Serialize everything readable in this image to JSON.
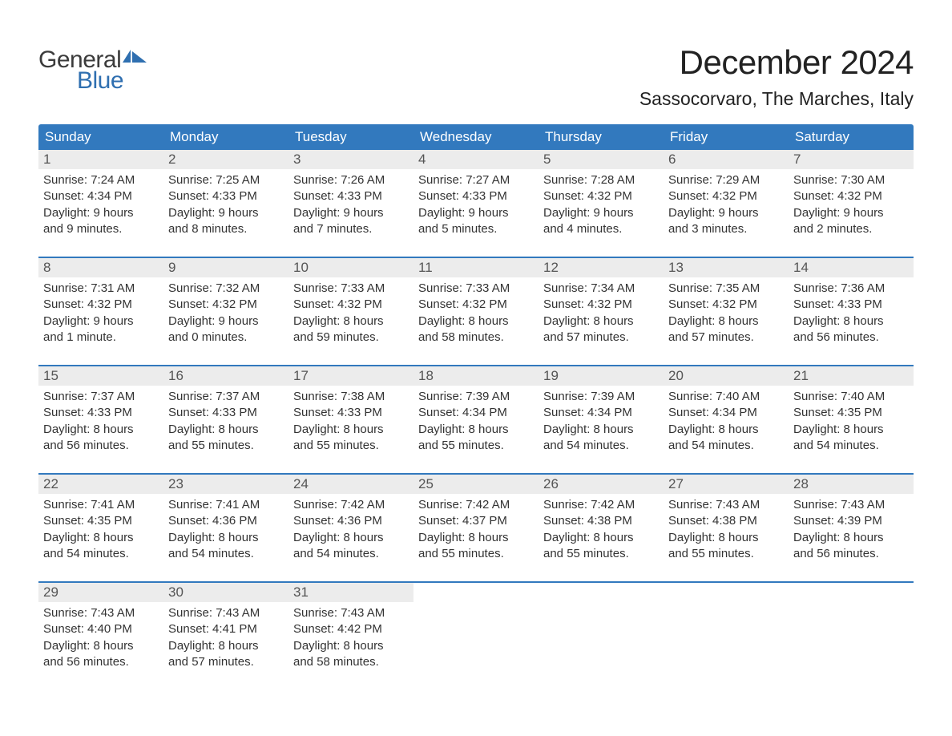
{
  "logo": {
    "text_general": "General",
    "text_blue": "Blue",
    "flag_color": "#2f6fb0"
  },
  "title": "December 2024",
  "location": "Sassocorvaro, The Marches, Italy",
  "colors": {
    "header_bg": "#3279be",
    "header_text": "#ffffff",
    "daynum_bg": "#ececec",
    "daynum_text": "#555555",
    "body_text": "#333333",
    "week_border": "#3279be",
    "page_bg": "#ffffff"
  },
  "fonts": {
    "title_size_pt": 32,
    "location_size_pt": 17,
    "dayheader_size_pt": 13,
    "daynum_size_pt": 13,
    "body_size_pt": 11
  },
  "layout": {
    "columns": 7,
    "rows": 5
  },
  "day_headers": [
    "Sunday",
    "Monday",
    "Tuesday",
    "Wednesday",
    "Thursday",
    "Friday",
    "Saturday"
  ],
  "weeks": [
    [
      {
        "n": "1",
        "sunrise": "Sunrise: 7:24 AM",
        "sunset": "Sunset: 4:34 PM",
        "daylight1": "Daylight: 9 hours",
        "daylight2": "and 9 minutes."
      },
      {
        "n": "2",
        "sunrise": "Sunrise: 7:25 AM",
        "sunset": "Sunset: 4:33 PM",
        "daylight1": "Daylight: 9 hours",
        "daylight2": "and 8 minutes."
      },
      {
        "n": "3",
        "sunrise": "Sunrise: 7:26 AM",
        "sunset": "Sunset: 4:33 PM",
        "daylight1": "Daylight: 9 hours",
        "daylight2": "and 7 minutes."
      },
      {
        "n": "4",
        "sunrise": "Sunrise: 7:27 AM",
        "sunset": "Sunset: 4:33 PM",
        "daylight1": "Daylight: 9 hours",
        "daylight2": "and 5 minutes."
      },
      {
        "n": "5",
        "sunrise": "Sunrise: 7:28 AM",
        "sunset": "Sunset: 4:32 PM",
        "daylight1": "Daylight: 9 hours",
        "daylight2": "and 4 minutes."
      },
      {
        "n": "6",
        "sunrise": "Sunrise: 7:29 AM",
        "sunset": "Sunset: 4:32 PM",
        "daylight1": "Daylight: 9 hours",
        "daylight2": "and 3 minutes."
      },
      {
        "n": "7",
        "sunrise": "Sunrise: 7:30 AM",
        "sunset": "Sunset: 4:32 PM",
        "daylight1": "Daylight: 9 hours",
        "daylight2": "and 2 minutes."
      }
    ],
    [
      {
        "n": "8",
        "sunrise": "Sunrise: 7:31 AM",
        "sunset": "Sunset: 4:32 PM",
        "daylight1": "Daylight: 9 hours",
        "daylight2": "and 1 minute."
      },
      {
        "n": "9",
        "sunrise": "Sunrise: 7:32 AM",
        "sunset": "Sunset: 4:32 PM",
        "daylight1": "Daylight: 9 hours",
        "daylight2": "and 0 minutes."
      },
      {
        "n": "10",
        "sunrise": "Sunrise: 7:33 AM",
        "sunset": "Sunset: 4:32 PM",
        "daylight1": "Daylight: 8 hours",
        "daylight2": "and 59 minutes."
      },
      {
        "n": "11",
        "sunrise": "Sunrise: 7:33 AM",
        "sunset": "Sunset: 4:32 PM",
        "daylight1": "Daylight: 8 hours",
        "daylight2": "and 58 minutes."
      },
      {
        "n": "12",
        "sunrise": "Sunrise: 7:34 AM",
        "sunset": "Sunset: 4:32 PM",
        "daylight1": "Daylight: 8 hours",
        "daylight2": "and 57 minutes."
      },
      {
        "n": "13",
        "sunrise": "Sunrise: 7:35 AM",
        "sunset": "Sunset: 4:32 PM",
        "daylight1": "Daylight: 8 hours",
        "daylight2": "and 57 minutes."
      },
      {
        "n": "14",
        "sunrise": "Sunrise: 7:36 AM",
        "sunset": "Sunset: 4:33 PM",
        "daylight1": "Daylight: 8 hours",
        "daylight2": "and 56 minutes."
      }
    ],
    [
      {
        "n": "15",
        "sunrise": "Sunrise: 7:37 AM",
        "sunset": "Sunset: 4:33 PM",
        "daylight1": "Daylight: 8 hours",
        "daylight2": "and 56 minutes."
      },
      {
        "n": "16",
        "sunrise": "Sunrise: 7:37 AM",
        "sunset": "Sunset: 4:33 PM",
        "daylight1": "Daylight: 8 hours",
        "daylight2": "and 55 minutes."
      },
      {
        "n": "17",
        "sunrise": "Sunrise: 7:38 AM",
        "sunset": "Sunset: 4:33 PM",
        "daylight1": "Daylight: 8 hours",
        "daylight2": "and 55 minutes."
      },
      {
        "n": "18",
        "sunrise": "Sunrise: 7:39 AM",
        "sunset": "Sunset: 4:34 PM",
        "daylight1": "Daylight: 8 hours",
        "daylight2": "and 55 minutes."
      },
      {
        "n": "19",
        "sunrise": "Sunrise: 7:39 AM",
        "sunset": "Sunset: 4:34 PM",
        "daylight1": "Daylight: 8 hours",
        "daylight2": "and 54 minutes."
      },
      {
        "n": "20",
        "sunrise": "Sunrise: 7:40 AM",
        "sunset": "Sunset: 4:34 PM",
        "daylight1": "Daylight: 8 hours",
        "daylight2": "and 54 minutes."
      },
      {
        "n": "21",
        "sunrise": "Sunrise: 7:40 AM",
        "sunset": "Sunset: 4:35 PM",
        "daylight1": "Daylight: 8 hours",
        "daylight2": "and 54 minutes."
      }
    ],
    [
      {
        "n": "22",
        "sunrise": "Sunrise: 7:41 AM",
        "sunset": "Sunset: 4:35 PM",
        "daylight1": "Daylight: 8 hours",
        "daylight2": "and 54 minutes."
      },
      {
        "n": "23",
        "sunrise": "Sunrise: 7:41 AM",
        "sunset": "Sunset: 4:36 PM",
        "daylight1": "Daylight: 8 hours",
        "daylight2": "and 54 minutes."
      },
      {
        "n": "24",
        "sunrise": "Sunrise: 7:42 AM",
        "sunset": "Sunset: 4:36 PM",
        "daylight1": "Daylight: 8 hours",
        "daylight2": "and 54 minutes."
      },
      {
        "n": "25",
        "sunrise": "Sunrise: 7:42 AM",
        "sunset": "Sunset: 4:37 PM",
        "daylight1": "Daylight: 8 hours",
        "daylight2": "and 55 minutes."
      },
      {
        "n": "26",
        "sunrise": "Sunrise: 7:42 AM",
        "sunset": "Sunset: 4:38 PM",
        "daylight1": "Daylight: 8 hours",
        "daylight2": "and 55 minutes."
      },
      {
        "n": "27",
        "sunrise": "Sunrise: 7:43 AM",
        "sunset": "Sunset: 4:38 PM",
        "daylight1": "Daylight: 8 hours",
        "daylight2": "and 55 minutes."
      },
      {
        "n": "28",
        "sunrise": "Sunrise: 7:43 AM",
        "sunset": "Sunset: 4:39 PM",
        "daylight1": "Daylight: 8 hours",
        "daylight2": "and 56 minutes."
      }
    ],
    [
      {
        "n": "29",
        "sunrise": "Sunrise: 7:43 AM",
        "sunset": "Sunset: 4:40 PM",
        "daylight1": "Daylight: 8 hours",
        "daylight2": "and 56 minutes."
      },
      {
        "n": "30",
        "sunrise": "Sunrise: 7:43 AM",
        "sunset": "Sunset: 4:41 PM",
        "daylight1": "Daylight: 8 hours",
        "daylight2": "and 57 minutes."
      },
      {
        "n": "31",
        "sunrise": "Sunrise: 7:43 AM",
        "sunset": "Sunset: 4:42 PM",
        "daylight1": "Daylight: 8 hours",
        "daylight2": "and 58 minutes."
      },
      {
        "empty": true
      },
      {
        "empty": true
      },
      {
        "empty": true
      },
      {
        "empty": true
      }
    ]
  ]
}
